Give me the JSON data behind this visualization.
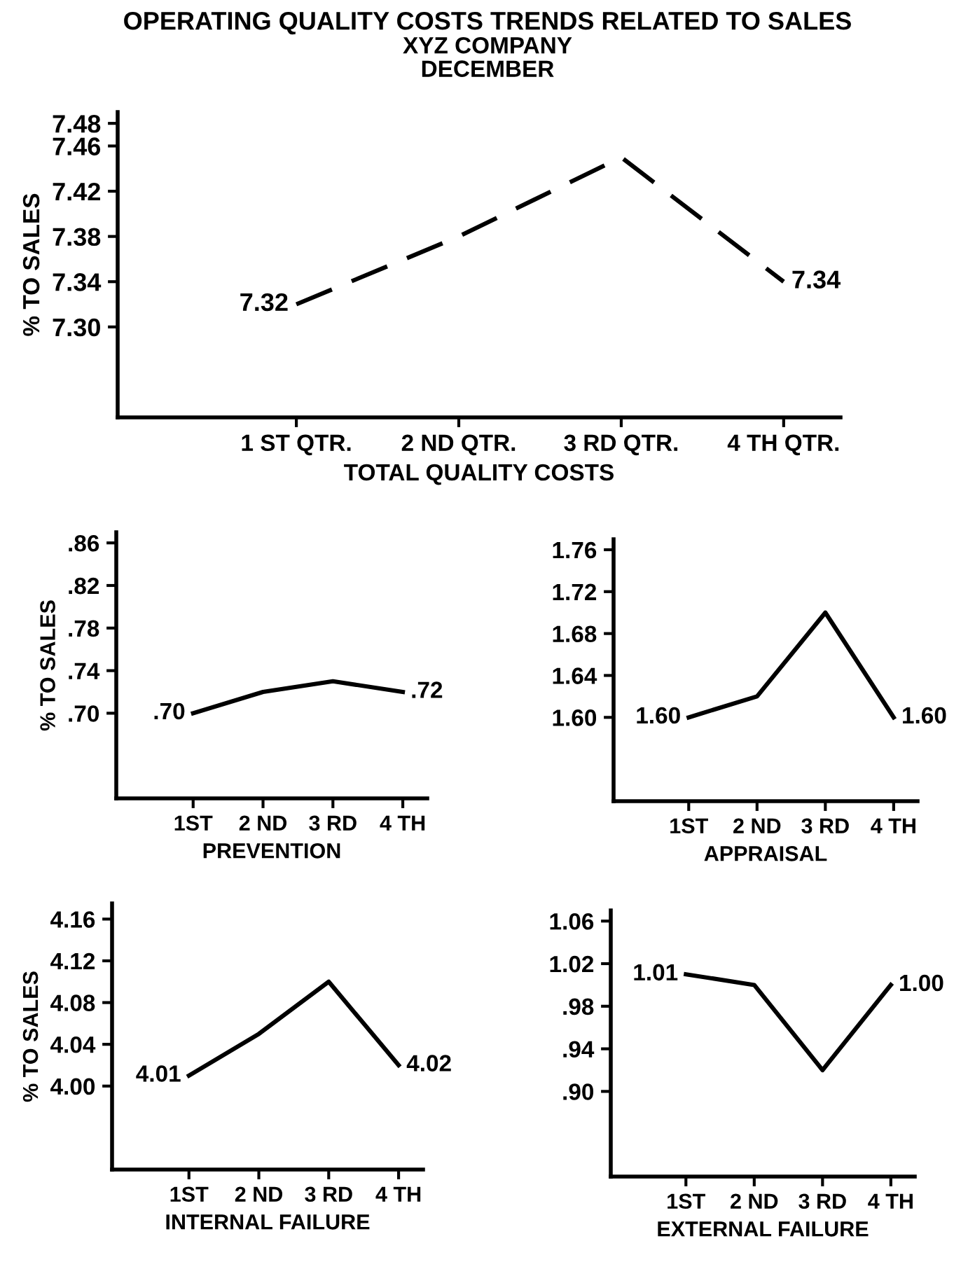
{
  "chart_data": [
    {
      "type": "line",
      "title": "OPERATING QUALITY COSTS TRENDS RELATED TO SALES",
      "subtitle": "XYZ COMPANY\nDECEMBER",
      "xlabel": "TOTAL QUALITY COSTS",
      "ylabel": "% TO SALES",
      "categories": [
        "1 ST QTR.",
        "2 ND QTR.",
        "3 RD QTR.",
        "4 TH QTR."
      ],
      "series": [
        {
          "color": "#000000",
          "values": [
            7.32,
            7.38,
            7.45,
            7.34
          ],
          "value_labels": [
            "7.32",
            null,
            null,
            "7.34"
          ]
        }
      ],
      "ylim": [
        7.22,
        7.49
      ],
      "yticks": [
        "7.30",
        "7.34",
        "7.38",
        "7.42",
        "7.46",
        "7.48"
      ],
      "line_style": "dashed",
      "grid": false,
      "legend": false
    },
    {
      "type": "line",
      "xlabel": "PREVENTION",
      "ylabel": "% TO SALES",
      "categories": [
        "1ST",
        "2 ND",
        "3 RD",
        "4 TH"
      ],
      "series": [
        {
          "color": "#000000",
          "values": [
            0.7,
            0.72,
            0.73,
            0.72
          ],
          "value_labels": [
            ".70",
            null,
            null,
            ".72"
          ]
        }
      ],
      "ylim": [
        0.62,
        0.87
      ],
      "yticks": [
        {
          "value": 0.7,
          "label": ".70"
        },
        {
          "value": 0.74,
          "label": ".74"
        },
        {
          "value": 0.78,
          "label": ".78"
        },
        {
          "value": 0.82,
          "label": ".82"
        },
        {
          "value": 0.86,
          "label": ".86"
        }
      ],
      "line_style": "solid",
      "grid": false,
      "legend": false
    },
    {
      "type": "line",
      "xlabel": "APPRAISAL",
      "categories": [
        "1ST",
        "2 ND",
        "3 RD",
        "4 TH"
      ],
      "series": [
        {
          "color": "#000000",
          "values": [
            1.6,
            1.62,
            1.7,
            1.6
          ],
          "value_labels": [
            "1.60",
            null,
            null,
            "1.60"
          ]
        }
      ],
      "ylim": [
        1.52,
        1.77
      ],
      "yticks": [
        {
          "value": 1.6,
          "label": "1.60"
        },
        {
          "value": 1.64,
          "label": "1.64"
        },
        {
          "value": 1.68,
          "label": "1.68"
        },
        {
          "value": 1.72,
          "label": "1.72"
        },
        {
          "value": 1.76,
          "label": "1.76"
        }
      ],
      "line_style": "solid",
      "grid": false,
      "legend": false
    },
    {
      "type": "line",
      "xlabel": "INTERNAL FAILURE",
      "ylabel": "% TO SALES",
      "categories": [
        "1ST",
        "2 ND",
        "3 RD",
        "4 TH"
      ],
      "series": [
        {
          "color": "#000000",
          "values": [
            4.01,
            4.05,
            4.1,
            4.02
          ],
          "value_labels": [
            "4.01",
            null,
            null,
            "4.02"
          ]
        }
      ],
      "ylim": [
        3.92,
        4.175
      ],
      "yticks": [
        {
          "value": 4.0,
          "label": "4.00"
        },
        {
          "value": 4.04,
          "label": "4.04"
        },
        {
          "value": 4.08,
          "label": "4.08"
        },
        {
          "value": 4.12,
          "label": "4.12"
        },
        {
          "value": 4.16,
          "label": "4.16"
        }
      ],
      "line_style": "solid",
      "grid": false,
      "legend": false
    },
    {
      "type": "line",
      "xlabel": "EXTERNAL FAILURE",
      "categories": [
        "1ST",
        "2 ND",
        "3 RD",
        "4 TH"
      ],
      "series": [
        {
          "color": "#000000",
          "values": [
            1.01,
            1.0,
            0.92,
            1.0
          ],
          "value_labels": [
            "1.01",
            null,
            null,
            "1.00"
          ]
        }
      ],
      "ylim": [
        0.82,
        1.07
      ],
      "yticks": [
        {
          "value": 0.9,
          "label": ".90"
        },
        {
          "value": 0.94,
          "label": ".94"
        },
        {
          "value": 0.98,
          "label": ".98"
        },
        {
          "value": 1.02,
          "label": "1.02"
        },
        {
          "value": 1.06,
          "label": "1.06"
        }
      ],
      "line_style": "solid",
      "grid": false,
      "legend": false
    }
  ]
}
